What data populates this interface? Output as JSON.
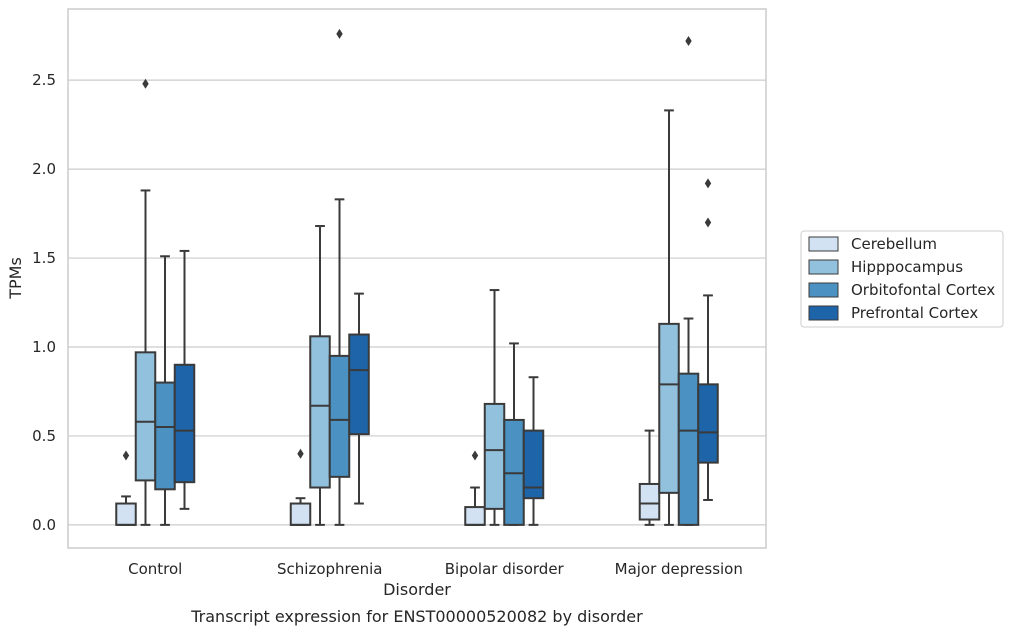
{
  "chart_data": {
    "type": "box",
    "title": "",
    "caption": "Transcript expression for ENST00000520082 by disorder",
    "xlabel": "Disorder",
    "ylabel": "TPMs",
    "ylim": [
      -0.13,
      2.9
    ],
    "yticks": [
      "0.0",
      "0.5",
      "1.0",
      "1.5",
      "2.0",
      "2.5"
    ],
    "ytick_values": [
      0.0,
      0.5,
      1.0,
      1.5,
      2.0,
      2.5
    ],
    "grid": true,
    "legend_position": "right",
    "categories": [
      "Control",
      "Schizophrenia",
      "Bipolar disorder",
      "Major depression"
    ],
    "series": [
      {
        "name": "Cerebellum",
        "color": "#d2e2f3",
        "boxes": [
          {
            "whislo": 0.0,
            "q1": 0.0,
            "med": 0.0,
            "q3": 0.12,
            "whishi": 0.16,
            "fliers": [
              0.39
            ]
          },
          {
            "whislo": 0.0,
            "q1": 0.0,
            "med": 0.0,
            "q3": 0.12,
            "whishi": 0.15,
            "fliers": [
              0.4
            ]
          },
          {
            "whislo": 0.0,
            "q1": 0.0,
            "med": 0.0,
            "q3": 0.1,
            "whishi": 0.21,
            "fliers": [
              0.39
            ]
          },
          {
            "whislo": 0.0,
            "q1": 0.03,
            "med": 0.12,
            "q3": 0.23,
            "whishi": 0.53,
            "fliers": []
          }
        ]
      },
      {
        "name": "Hipppocampus",
        "color": "#92c1dd",
        "boxes": [
          {
            "whislo": 0.0,
            "q1": 0.25,
            "med": 0.58,
            "q3": 0.97,
            "whishi": 1.88,
            "fliers": [
              2.48
            ]
          },
          {
            "whislo": 0.0,
            "q1": 0.21,
            "med": 0.67,
            "q3": 1.06,
            "whishi": 1.68,
            "fliers": []
          },
          {
            "whislo": 0.0,
            "q1": 0.09,
            "med": 0.42,
            "q3": 0.68,
            "whishi": 1.32,
            "fliers": []
          },
          {
            "whislo": 0.0,
            "q1": 0.18,
            "med": 0.79,
            "q3": 1.13,
            "whishi": 2.33,
            "fliers": []
          }
        ]
      },
      {
        "name": "Orbitofontal Cortex",
        "color": "#4b91c2",
        "boxes": [
          {
            "whislo": 0.0,
            "q1": 0.2,
            "med": 0.55,
            "q3": 0.8,
            "whishi": 1.51,
            "fliers": []
          },
          {
            "whislo": 0.0,
            "q1": 0.27,
            "med": 0.59,
            "q3": 0.95,
            "whishi": 1.83,
            "fliers": [
              2.76
            ]
          },
          {
            "whislo": 0.0,
            "q1": 0.0,
            "med": 0.29,
            "q3": 0.59,
            "whishi": 1.02,
            "fliers": []
          },
          {
            "whislo": 0.0,
            "q1": 0.0,
            "med": 0.53,
            "q3": 0.85,
            "whishi": 1.16,
            "fliers": [
              2.72
            ]
          }
        ]
      },
      {
        "name": "Prefrontal Cortex",
        "color": "#1e64a8",
        "boxes": [
          {
            "whislo": 0.09,
            "q1": 0.24,
            "med": 0.53,
            "q3": 0.9,
            "whishi": 1.54,
            "fliers": []
          },
          {
            "whislo": 0.12,
            "q1": 0.51,
            "med": 0.87,
            "q3": 1.07,
            "whishi": 1.3,
            "fliers": []
          },
          {
            "whislo": 0.0,
            "q1": 0.15,
            "med": 0.21,
            "q3": 0.53,
            "whishi": 0.83,
            "fliers": []
          },
          {
            "whislo": 0.14,
            "q1": 0.35,
            "med": 0.52,
            "q3": 0.79,
            "whishi": 1.29,
            "fliers": [
              1.92,
              1.7
            ]
          }
        ]
      }
    ]
  }
}
